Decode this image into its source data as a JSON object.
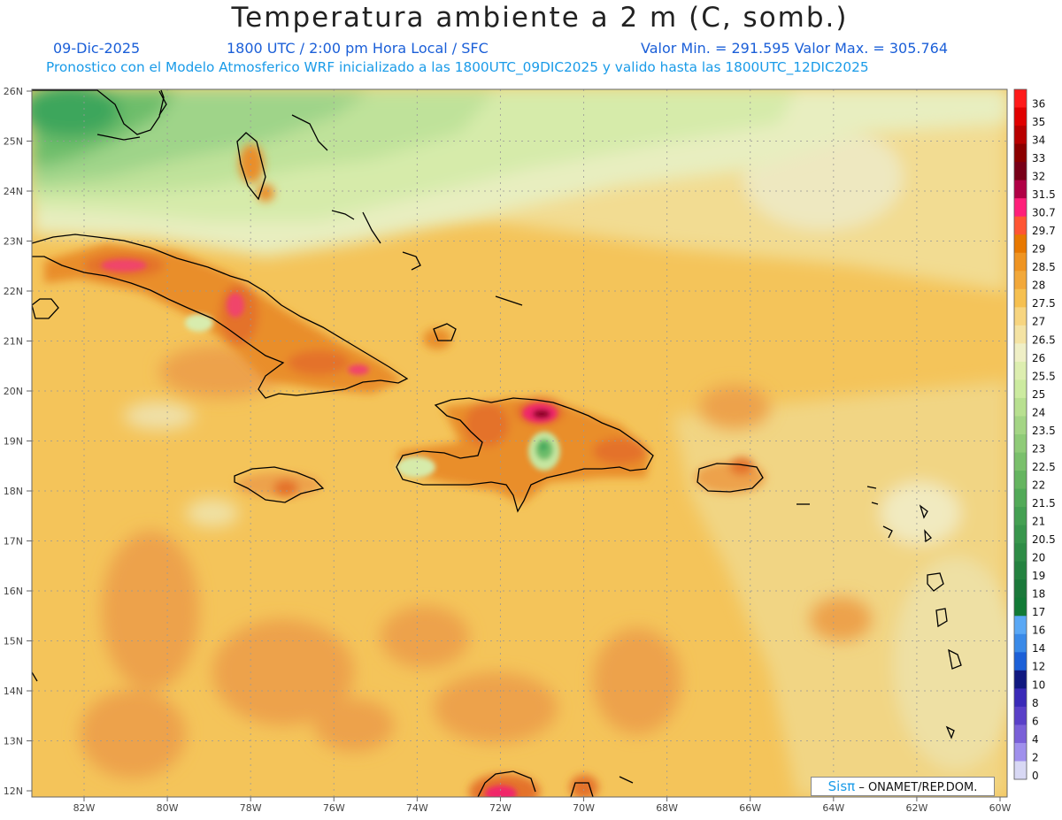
{
  "header": {
    "title": "Temperatura ambiente a 2 m (C, somb.)",
    "date": "09-Dic-2025",
    "time": "1800 UTC / 2:00 pm Hora Local / SFC",
    "minmax": "Valor Min. = 291.595   Valor Max. = 305.764",
    "forecast": "Pronostico con el Modelo Atmosferico WRF inicializado a las 1800UTC_09DIC2025 y valido hasta las  1800UTC_12DIC2025"
  },
  "map": {
    "lat_labels": [
      "26N",
      "25N",
      "24N",
      "23N",
      "22N",
      "21N",
      "20N",
      "19N",
      "18N",
      "17N",
      "16N",
      "15N",
      "14N",
      "13N",
      "12N"
    ],
    "lon_labels": [
      "82W",
      "80W",
      "78W",
      "76W",
      "74W",
      "72W",
      "70W",
      "68W",
      "66W",
      "64W",
      "62W",
      "60W"
    ],
    "grid": "on",
    "region": "Caribbean / Greater Antilles"
  },
  "colorbar": {
    "labels": [
      "36",
      "35",
      "34",
      "33",
      "32",
      "31.5",
      "30.7",
      "29.7",
      "29",
      "28.5",
      "28",
      "27.5",
      "27",
      "26.5",
      "26",
      "25.5",
      "25",
      "24",
      "23.5",
      "23",
      "22.5",
      "22",
      "21.5",
      "21",
      "20.5",
      "20",
      "19",
      "18",
      "17",
      "16",
      "14",
      "12",
      "10",
      "8",
      "6",
      "4",
      "2",
      "0"
    ],
    "colors": [
      "#ff1a1a",
      "#e00000",
      "#b80000",
      "#8b0000",
      "#780018",
      "#b00045",
      "#ff1f7a",
      "#ff5533",
      "#e87800",
      "#ef9422",
      "#f2a83a",
      "#f6c050",
      "#f7d580",
      "#f4e3a4",
      "#efefc6",
      "#ddeeb0",
      "#cceba0",
      "#b8e090",
      "#a4d585",
      "#8fcb78",
      "#7ac06c",
      "#65b560",
      "#52aa58",
      "#44a052",
      "#38964c",
      "#2e8c46",
      "#248240",
      "#1b783a",
      "#127a36",
      "#5aa8f5",
      "#3a8ae8",
      "#1c60d8",
      "#101880",
      "#3a2ab8",
      "#5a40c8",
      "#7a60d8",
      "#a090ec",
      "#d8d8f4"
    ]
  },
  "credit": {
    "sis": "Sis",
    "pi": "π",
    "text": " –  ONAMET/REP.DOM."
  }
}
